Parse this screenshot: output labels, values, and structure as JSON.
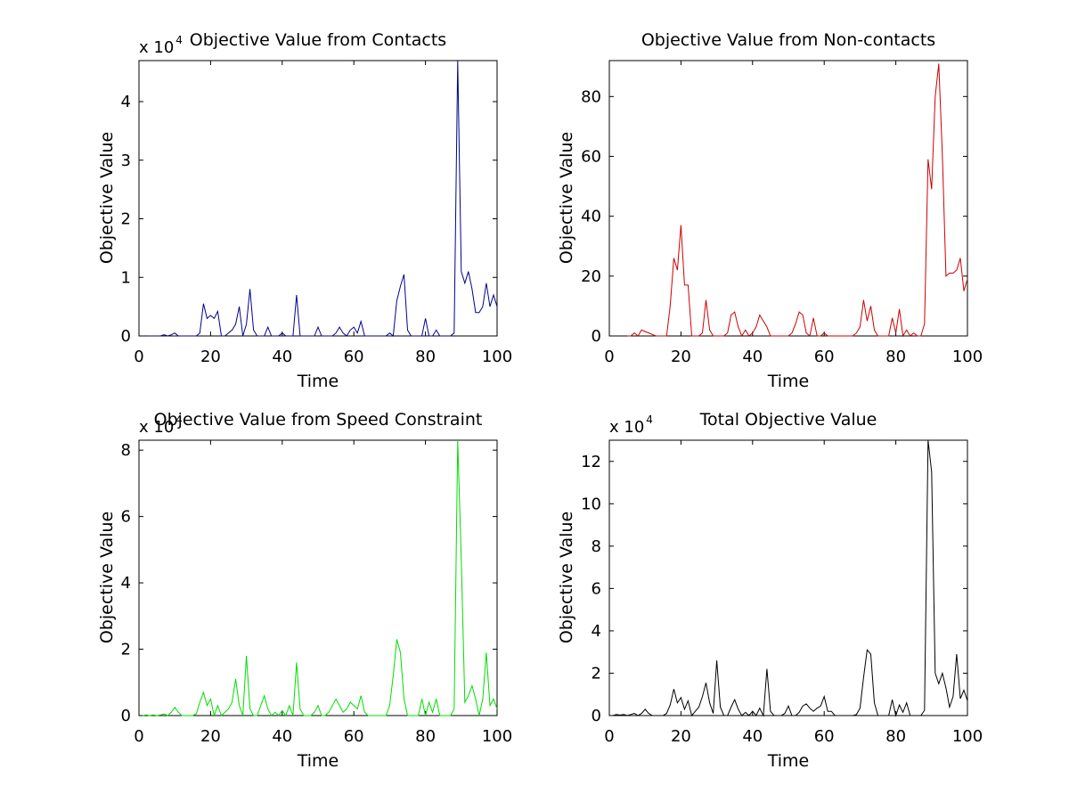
{
  "chart_data": [
    {
      "type": "line",
      "title": "Objective Value from Contacts",
      "xlabel": "Time",
      "ylabel": "Objective Value",
      "xlim": [
        0,
        100
      ],
      "ylim": [
        0,
        4.7
      ],
      "y_multiplier_label": "x 10",
      "y_multiplier_exponent": "4",
      "xticks": [
        "0",
        "20",
        "40",
        "60",
        "80",
        "100"
      ],
      "yticks": [
        "0",
        "1",
        "2",
        "3",
        "4"
      ],
      "color": "#00008f",
      "series": [
        {
          "x": [
            3,
            4,
            5,
            6,
            7,
            8,
            9,
            10,
            11,
            12,
            13,
            14,
            15,
            16,
            17,
            18,
            19,
            20,
            21,
            22,
            23,
            24,
            25,
            26,
            27,
            28,
            29,
            30,
            31,
            32,
            33,
            34,
            35,
            36,
            37,
            38,
            39,
            40,
            41,
            42,
            43,
            44,
            45,
            46,
            47,
            48,
            49,
            50,
            51,
            52,
            53,
            54,
            55,
            56,
            57,
            58,
            59,
            60,
            61,
            62,
            63,
            64,
            65,
            66,
            67,
            68,
            69,
            70,
            71,
            72,
            73,
            74,
            75,
            76,
            77,
            78,
            79,
            80,
            81,
            82,
            83,
            84,
            85,
            86,
            87,
            88,
            89,
            90,
            91,
            92,
            93,
            94,
            95,
            96,
            97,
            98,
            99,
            100
          ],
          "y": [
            0,
            0,
            0,
            0,
            0.02,
            0,
            0.02,
            0.05,
            0,
            0,
            0,
            0,
            0,
            0,
            0.05,
            0.55,
            0.3,
            0.35,
            0.3,
            0.42,
            0,
            0,
            0.05,
            0.1,
            0.2,
            0.5,
            0,
            0.2,
            0.8,
            0.1,
            0,
            0,
            0,
            0.15,
            0,
            0,
            0,
            0.05,
            0,
            0,
            0,
            0.7,
            0,
            0,
            0,
            0,
            0,
            0.15,
            0,
            0,
            0,
            0,
            0.05,
            0.15,
            0.05,
            0,
            0.1,
            0.15,
            0.05,
            0.25,
            0,
            0,
            0,
            0,
            0,
            0,
            0,
            0.05,
            0,
            0.6,
            0.85,
            1.05,
            0.1,
            0,
            0,
            0,
            0,
            0.3,
            0,
            0,
            0.1,
            0,
            0,
            0,
            0,
            0.05,
            4.7,
            1.1,
            0.9,
            1.1,
            0.8,
            0.4,
            0.4,
            0.5,
            0.9,
            0.5,
            0.7,
            0.5
          ]
        }
      ]
    },
    {
      "type": "line",
      "title": "Objective Value from Non-contacts",
      "xlabel": "Time",
      "ylabel": "Objective Value",
      "xlim": [
        0,
        100
      ],
      "ylim": [
        0,
        92
      ],
      "xticks": [
        "0",
        "20",
        "40",
        "60",
        "80",
        "100"
      ],
      "yticks": [
        "0",
        "20",
        "40",
        "60",
        "80"
      ],
      "color": "#cc0000",
      "series": [
        {
          "x": [
            5,
            6,
            7,
            8,
            9,
            10,
            11,
            12,
            13,
            14,
            15,
            16,
            17,
            18,
            19,
            20,
            21,
            22,
            23,
            24,
            25,
            26,
            27,
            28,
            29,
            30,
            31,
            32,
            33,
            34,
            35,
            36,
            37,
            38,
            39,
            40,
            41,
            42,
            43,
            44,
            45,
            46,
            47,
            48,
            49,
            50,
            51,
            52,
            53,
            54,
            55,
            56,
            57,
            58,
            59,
            60,
            61,
            62,
            63,
            64,
            65,
            66,
            67,
            68,
            69,
            70,
            71,
            72,
            73,
            74,
            75,
            76,
            77,
            78,
            79,
            80,
            81,
            82,
            83,
            84,
            85,
            86,
            87,
            88,
            89,
            90,
            91,
            92,
            93,
            94,
            95,
            96,
            97,
            98,
            99,
            100
          ],
          "y": [
            0,
            0,
            1,
            0,
            2,
            1.5,
            1,
            0.5,
            0,
            0,
            0,
            0,
            10,
            26,
            22,
            37,
            17,
            17,
            0,
            0,
            0,
            1,
            12,
            2,
            0,
            0,
            0,
            0,
            1,
            7,
            8,
            3,
            0,
            2,
            0,
            1,
            3,
            7,
            5,
            3,
            0,
            0,
            0,
            0,
            0,
            0,
            1,
            4,
            8,
            7,
            1,
            0,
            6,
            0,
            0,
            1,
            0,
            0,
            0,
            0,
            0,
            0,
            0,
            0,
            1,
            3,
            12,
            5,
            10,
            2,
            0,
            0,
            0,
            0,
            6,
            1,
            9,
            0,
            2,
            0,
            1,
            0,
            0,
            4,
            59,
            49,
            80,
            91,
            60,
            20,
            21,
            21,
            22,
            26,
            15,
            19
          ]
        }
      ]
    },
    {
      "type": "line",
      "title": "Objective Value from Speed Constraint",
      "xlabel": "Time",
      "ylabel": "Objective Value",
      "xlim": [
        0,
        100
      ],
      "ylim": [
        0,
        8.3
      ],
      "y_multiplier_label": "x 10",
      "y_multiplier_exponent": "4",
      "xticks": [
        "0",
        "20",
        "40",
        "60",
        "80",
        "100"
      ],
      "yticks": [
        "0",
        "2",
        "4",
        "6",
        "8"
      ],
      "color": "#00dd00",
      "series": [
        {
          "x": [
            1,
            2,
            3,
            4,
            5,
            6,
            7,
            8,
            9,
            10,
            11,
            12,
            13,
            14,
            15,
            16,
            17,
            18,
            19,
            20,
            21,
            22,
            23,
            24,
            25,
            26,
            27,
            28,
            29,
            30,
            31,
            32,
            33,
            34,
            35,
            36,
            37,
            38,
            39,
            40,
            41,
            42,
            43,
            44,
            45,
            46,
            47,
            48,
            49,
            50,
            51,
            52,
            53,
            54,
            55,
            56,
            57,
            58,
            59,
            60,
            61,
            62,
            63,
            64,
            65,
            66,
            67,
            68,
            69,
            70,
            71,
            72,
            73,
            74,
            75,
            76,
            77,
            78,
            79,
            80,
            81,
            82,
            83,
            84,
            85,
            86,
            87,
            88,
            89,
            90,
            91,
            92,
            93,
            94,
            95,
            96,
            97,
            98,
            99,
            100
          ],
          "y": [
            0,
            0.02,
            0,
            0.02,
            0,
            0.02,
            0.05,
            0,
            0.1,
            0.25,
            0.1,
            0,
            0,
            0,
            0,
            0.05,
            0.4,
            0.7,
            0.3,
            0.5,
            0,
            0.3,
            0,
            0.1,
            0.2,
            0.4,
            1.1,
            0.3,
            0,
            1.8,
            0.2,
            0,
            0,
            0.3,
            0.6,
            0.2,
            0,
            0.1,
            0,
            0.15,
            0,
            0.3,
            0,
            1.6,
            0.2,
            0,
            0,
            0,
            0.1,
            0.3,
            0,
            0,
            0.1,
            0.3,
            0.5,
            0.3,
            0.1,
            0.2,
            0.4,
            0.3,
            0.2,
            0.6,
            0.1,
            0,
            0,
            0,
            0,
            0,
            0,
            0.3,
            1.2,
            2.3,
            1.9,
            0.5,
            0,
            0,
            0,
            0,
            0.5,
            0,
            0.4,
            0.1,
            0.5,
            0,
            0,
            0,
            0,
            0.2,
            8.3,
            4.7,
            0.4,
            0.6,
            0.9,
            0.5,
            0,
            0.5,
            1.9,
            0.3,
            0.5,
            0.2
          ]
        }
      ]
    },
    {
      "type": "line",
      "title": "Total Objective Value",
      "xlabel": "Time",
      "ylabel": "Objective Value",
      "xlim": [
        0,
        100
      ],
      "ylim": [
        0,
        13
      ],
      "y_multiplier_label": "x 10",
      "y_multiplier_exponent": "4",
      "xticks": [
        "0",
        "20",
        "40",
        "60",
        "80",
        "100"
      ],
      "yticks": [
        "0",
        "2",
        "4",
        "6",
        "8",
        "10",
        "12"
      ],
      "color": "#000000",
      "series": [
        {
          "x": [
            1,
            2,
            3,
            4,
            5,
            6,
            7,
            8,
            9,
            10,
            11,
            12,
            13,
            14,
            15,
            16,
            17,
            18,
            19,
            20,
            21,
            22,
            23,
            24,
            25,
            26,
            27,
            28,
            29,
            30,
            31,
            32,
            33,
            34,
            35,
            36,
            37,
            38,
            39,
            40,
            41,
            42,
            43,
            44,
            45,
            46,
            47,
            48,
            49,
            50,
            51,
            52,
            53,
            54,
            55,
            56,
            57,
            58,
            59,
            60,
            61,
            62,
            63,
            64,
            65,
            66,
            67,
            68,
            69,
            70,
            71,
            72,
            73,
            74,
            75,
            76,
            77,
            78,
            79,
            80,
            81,
            82,
            83,
            84,
            85,
            86,
            87,
            88,
            89,
            90,
            91,
            92,
            93,
            94,
            95,
            96,
            97,
            98,
            99,
            100
          ],
          "y": [
            0,
            0.05,
            0.02,
            0.05,
            0,
            0.05,
            0.1,
            0,
            0.1,
            0.3,
            0.1,
            0,
            0,
            0,
            0,
            0.1,
            0.5,
            1.25,
            0.6,
            0.85,
            0.3,
            0.7,
            0,
            0.2,
            0.4,
            0.9,
            1.55,
            0.6,
            0.1,
            2.6,
            0.4,
            0,
            0,
            0.4,
            0.75,
            0.3,
            0,
            0.15,
            0,
            0.2,
            0,
            0.35,
            0,
            2.2,
            0.2,
            0,
            0,
            0,
            0.1,
            0.45,
            0,
            0,
            0.15,
            0.45,
            0.55,
            0.35,
            0.2,
            0.35,
            0.45,
            0.9,
            0.2,
            0.2,
            0,
            0,
            0,
            0,
            0,
            0,
            0.05,
            0.35,
            1.8,
            3.1,
            2.9,
            0.6,
            0,
            0,
            0,
            0,
            0.75,
            0,
            0.5,
            0.15,
            0.6,
            0,
            0,
            0,
            0,
            0.25,
            13,
            11.5,
            2,
            1.5,
            2,
            1.3,
            0.4,
            0.9,
            2.9,
            0.8,
            1.2,
            0.7
          ]
        }
      ]
    }
  ]
}
